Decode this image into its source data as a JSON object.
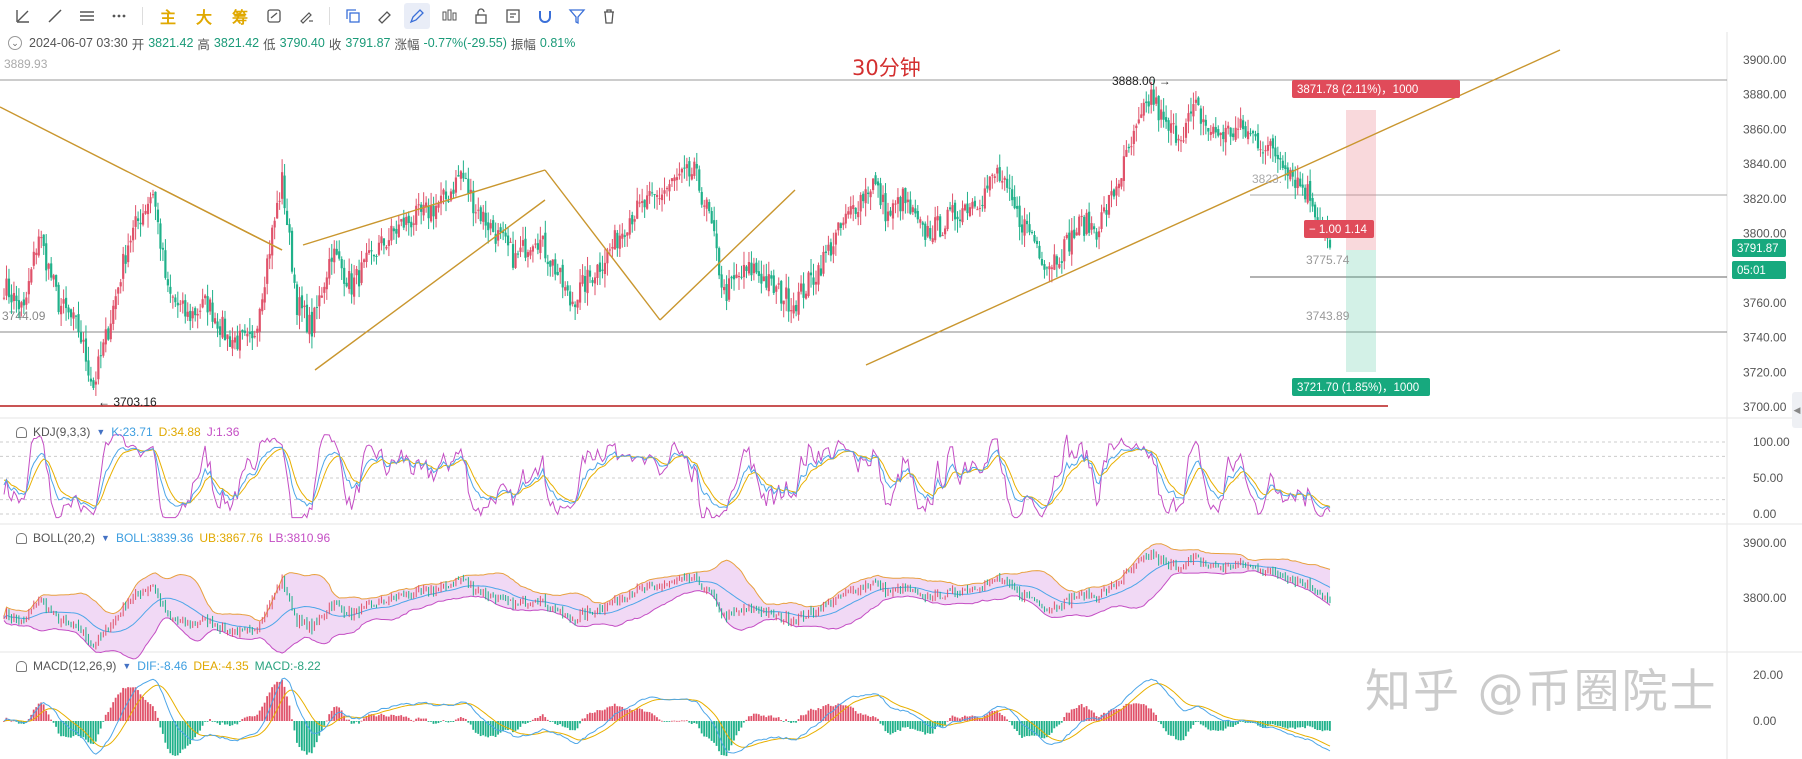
{
  "toolbar": {
    "buttons": [
      "trend-line-tool",
      "ray-tool",
      "channel-tool",
      "more-tool"
    ],
    "text_buttons": [
      "主",
      "大",
      "筹"
    ],
    "tools": [
      "indicator-tool",
      "brush-tool",
      "copy-tool",
      "ruler-tool",
      "draw-tool",
      "candle-tool",
      "lock-tool",
      "note-tool",
      "magnet-tool",
      "filter-tool",
      "trash-tool"
    ]
  },
  "info": {
    "datetime": "2024-06-07 03:30",
    "open_label": "开",
    "open": "3821.42",
    "high_label": "高",
    "high": "3821.42",
    "low_label": "低",
    "low": "3790.40",
    "close_label": "收",
    "close": "3791.87",
    "change_label": "涨幅",
    "change": "-0.77%(-29.55)",
    "amp_label": "振幅",
    "amp": "0.81%"
  },
  "title": "30分钟",
  "watermark": "知乎 @币圈院士",
  "annotations": {
    "top_level": "3889.93",
    "high_mark": "3888.00 →",
    "low_mark": "← 3703.16",
    "mid_price": "3823.",
    "left_level": "3744.09",
    "target_up": "3871.78 (2.11%)，1000",
    "target_down": "3721.70 (1.85%)，1000",
    "ratio": "− 1.00 1.14",
    "level_1": "3775.74",
    "level_2": "3743.89"
  },
  "price_axis": {
    "ticks": [
      "3900.00",
      "3880.00",
      "3860.00",
      "3840.00",
      "3820.00",
      "3800.00",
      "3780.00",
      "3760.00",
      "3740.00",
      "3720.00",
      "3700.00"
    ],
    "current_price": "3791.87",
    "countdown": "05:01"
  },
  "kdj": {
    "name": "KDJ(9,3,3)",
    "k": "K:23.71",
    "d": "D:34.88",
    "j": "J:1.36",
    "ticks": [
      "100.00",
      "50.00",
      "0.00"
    ]
  },
  "boll": {
    "name": "BOLL(20,2)",
    "boll": "BOLL:3839.36",
    "ub": "UB:3867.76",
    "lb": "LB:3810.96",
    "ticks": [
      "3900.00",
      "3800.00"
    ]
  },
  "macd": {
    "name": "MACD(12,26,9)",
    "dif": "DIF:-8.46",
    "dea": "DEA:-4.35",
    "macd": "MACD:-8.22",
    "ticks": [
      "20.00",
      "0.00"
    ]
  },
  "colors": {
    "up": "#e0526a",
    "down": "#20b18a",
    "trend": "#c9962e",
    "k": "#4da6e8",
    "d": "#e8b000",
    "j": "#c44ec4",
    "redline": "#b71c1c"
  },
  "chart_data": {
    "type": "candlestick",
    "title": "30分钟",
    "ylim": [
      3695,
      3910
    ],
    "anchors": [
      [
        0,
        3770
      ],
      [
        8,
        3755
      ],
      [
        14,
        3800
      ],
      [
        22,
        3760
      ],
      [
        30,
        3745
      ],
      [
        36,
        3712
      ],
      [
        42,
        3745
      ],
      [
        50,
        3795
      ],
      [
        60,
        3825
      ],
      [
        66,
        3765
      ],
      [
        74,
        3752
      ],
      [
        82,
        3760
      ],
      [
        90,
        3740
      ],
      [
        100,
        3736
      ],
      [
        108,
        3800
      ],
      [
        112,
        3830
      ],
      [
        118,
        3760
      ],
      [
        124,
        3745
      ],
      [
        132,
        3790
      ],
      [
        140,
        3770
      ],
      [
        150,
        3790
      ],
      [
        160,
        3805
      ],
      [
        170,
        3812
      ],
      [
        178,
        3820
      ],
      [
        184,
        3835
      ],
      [
        190,
        3815
      ],
      [
        198,
        3800
      ],
      [
        206,
        3785
      ],
      [
        214,
        3800
      ],
      [
        222,
        3780
      ],
      [
        228,
        3760
      ],
      [
        236,
        3775
      ],
      [
        244,
        3790
      ],
      [
        252,
        3810
      ],
      [
        262,
        3820
      ],
      [
        270,
        3830
      ],
      [
        278,
        3835
      ],
      [
        284,
        3810
      ],
      [
        290,
        3765
      ],
      [
        296,
        3775
      ],
      [
        302,
        3780
      ],
      [
        310,
        3768
      ],
      [
        318,
        3760
      ],
      [
        326,
        3775
      ],
      [
        334,
        3795
      ],
      [
        342,
        3815
      ],
      [
        350,
        3830
      ],
      [
        356,
        3810
      ],
      [
        362,
        3820
      ],
      [
        370,
        3800
      ],
      [
        378,
        3805
      ],
      [
        386,
        3815
      ],
      [
        394,
        3822
      ],
      [
        400,
        3835
      ],
      [
        408,
        3810
      ],
      [
        414,
        3800
      ],
      [
        420,
        3782
      ],
      [
        426,
        3790
      ],
      [
        434,
        3806
      ],
      [
        440,
        3803
      ],
      [
        446,
        3820
      ],
      [
        452,
        3843
      ],
      [
        458,
        3865
      ],
      [
        462,
        3880
      ],
      [
        468,
        3860
      ],
      [
        474,
        3858
      ],
      [
        480,
        3872
      ],
      [
        486,
        3858
      ],
      [
        492,
        3858
      ],
      [
        498,
        3860
      ],
      [
        504,
        3855
      ],
      [
        510,
        3848
      ],
      [
        516,
        3842
      ],
      [
        520,
        3832
      ],
      [
        526,
        3822
      ],
      [
        532,
        3800
      ],
      [
        534,
        3792
      ]
    ],
    "n_candles": 535
  }
}
